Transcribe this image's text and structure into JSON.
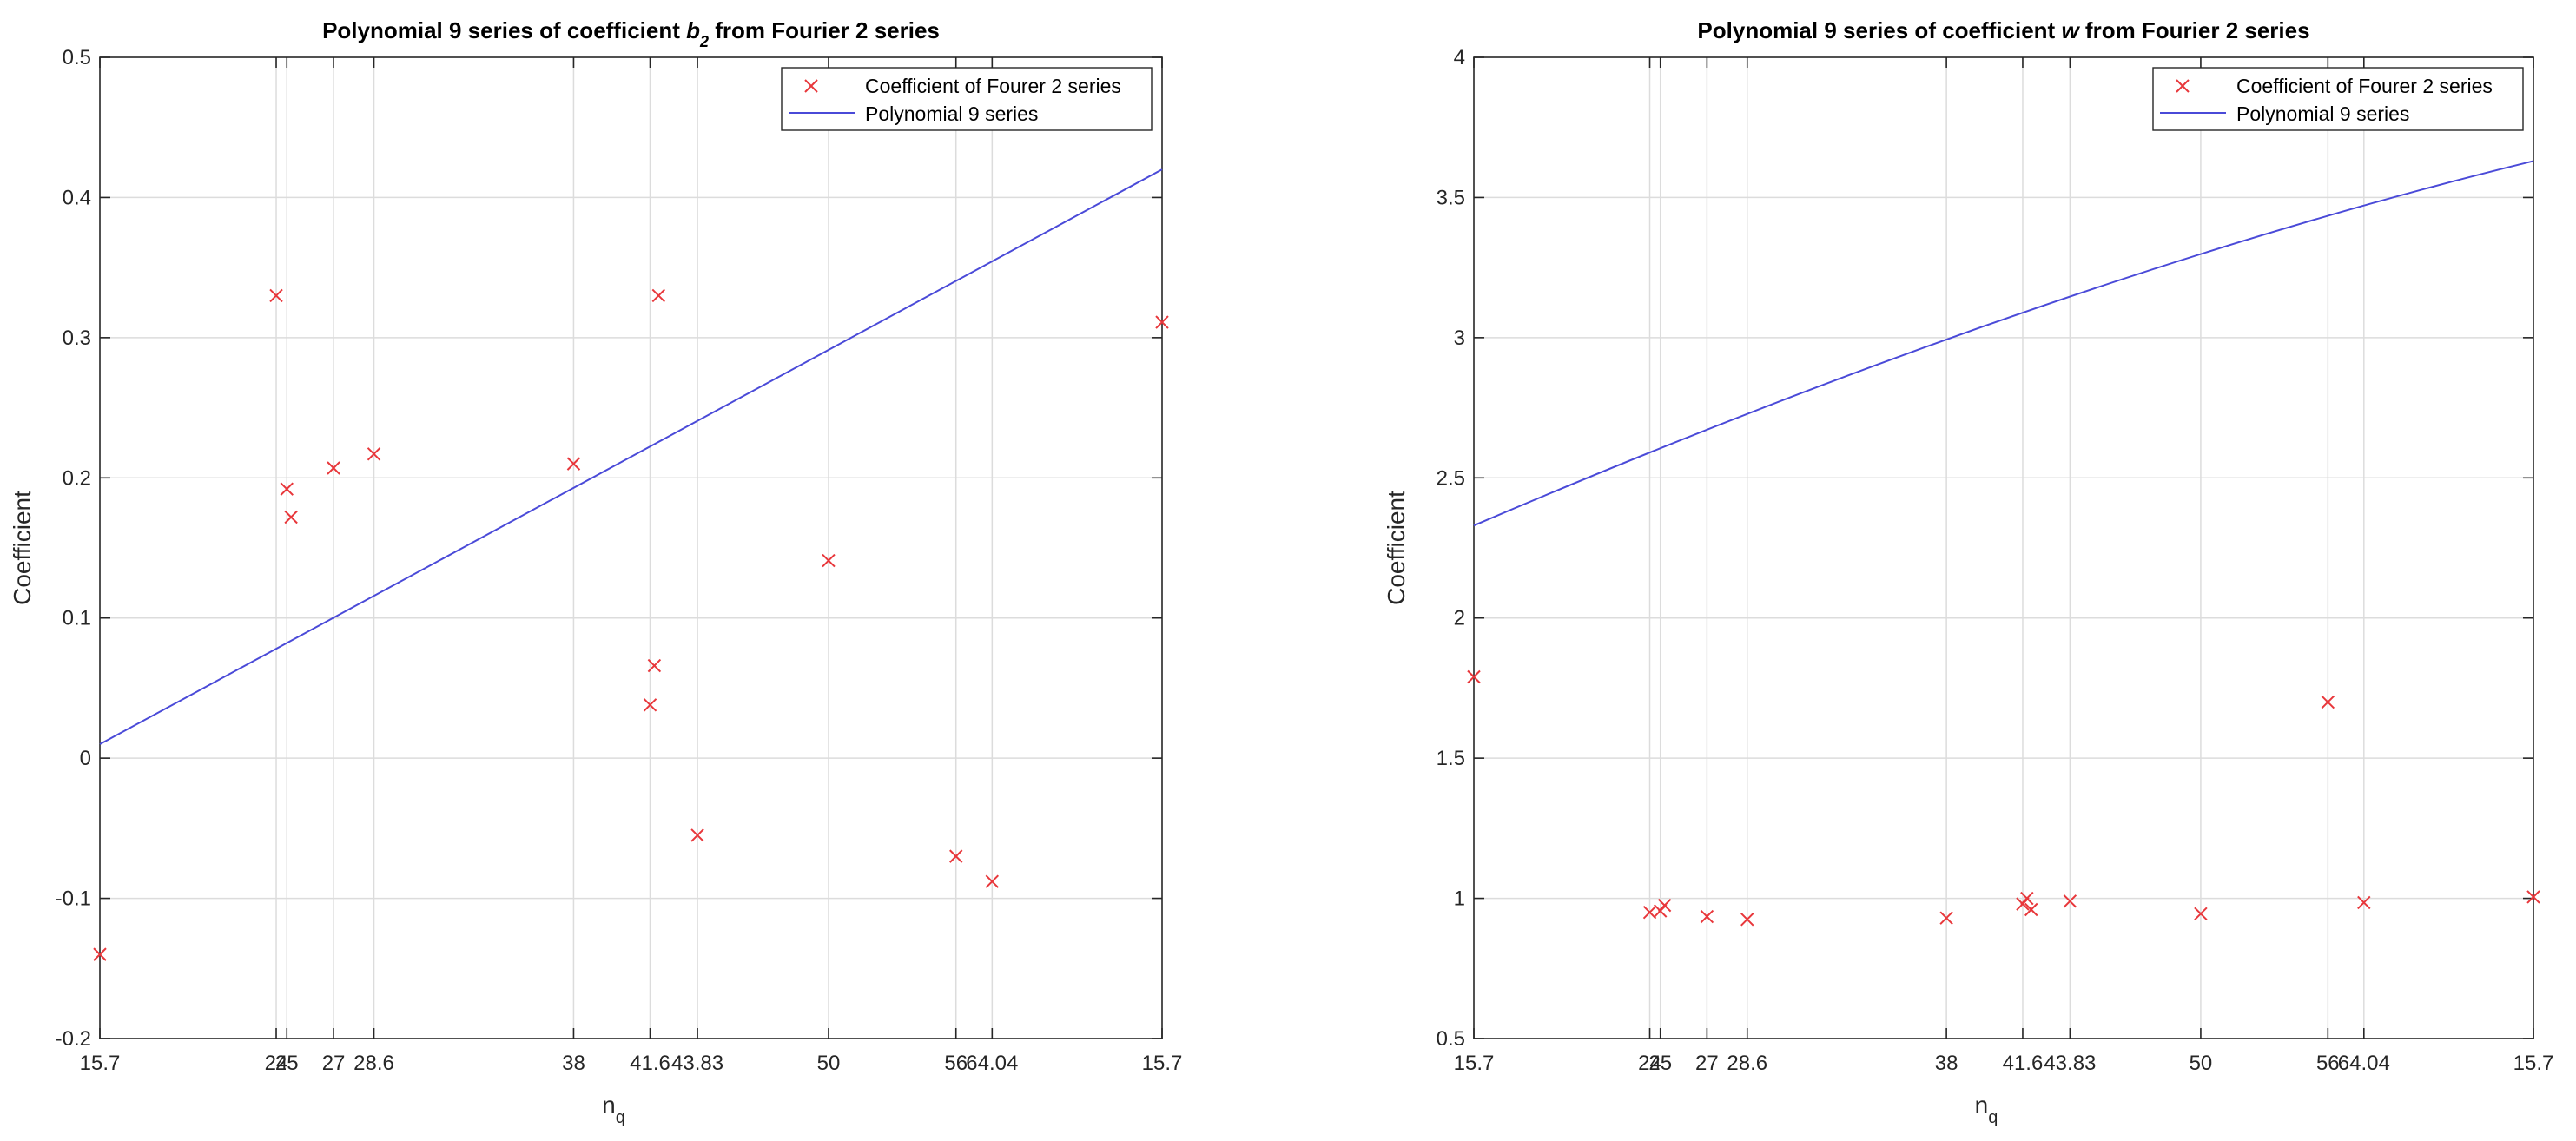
{
  "figure": {
    "colors": {
      "marker": "#e8373b",
      "fit_line": "#4a4ad8",
      "axes": "#262626",
      "grid": "#dcdcdc"
    }
  },
  "chart_data": [
    {
      "type": "scatter",
      "title": {
        "prefix": "Polynomial 9 series of coefficient ",
        "symbol": "b",
        "subscript": "2",
        "suffix": "  from Fourier 2 series"
      },
      "xlabel": {
        "base": "n",
        "subscript": "q"
      },
      "ylabel": "Coefficient",
      "x_ticks": [
        "15.7",
        "24",
        "25",
        "27",
        "28.6",
        "38",
        "41.6",
        "43.83",
        "50",
        "56",
        "64.04",
        "15.7"
      ],
      "ylim": [
        -0.2,
        0.5
      ],
      "y_ticks": [
        "-0.2",
        "-0.1",
        "0",
        "0.1",
        "0.2",
        "0.3",
        "0.4",
        "0.5"
      ],
      "grid": true,
      "legend_position": "top-right",
      "legend": [
        "Coefficient of Fourer 2 series",
        "Polynomial 9 series"
      ],
      "series": [
        {
          "name": "Coefficient of Fourer 2 series",
          "x": [
            15.7,
            24,
            24.5,
            24.7,
            26.7,
            28.6,
            38,
            41.6,
            41.8,
            42,
            43.83,
            50,
            56,
            57.7,
            65.7
          ],
          "y": [
            -0.14,
            0.33,
            0.192,
            0.172,
            0.207,
            0.217,
            0.21,
            0.038,
            0.066,
            0.33,
            -0.055,
            0.141,
            -0.07,
            -0.088,
            0.311
          ]
        },
        {
          "name": "Polynomial 9 series",
          "x": [
            15.7,
            65.7
          ],
          "y": [
            0.01,
            0.42
          ],
          "curvature": 0
        }
      ]
    },
    {
      "type": "scatter",
      "title": {
        "prefix": "Polynomial 9 series of coefficient ",
        "symbol": "w",
        "subscript": "",
        "suffix": "  from Fourier 2 series"
      },
      "xlabel": {
        "base": "n",
        "subscript": "q"
      },
      "ylabel": "Coefficient",
      "x_ticks": [
        "15.7",
        "24",
        "25",
        "27",
        "28.6",
        "38",
        "41.6",
        "43.83",
        "50",
        "56",
        "64.04",
        "15.7"
      ],
      "ylim": [
        0.5,
        4
      ],
      "y_ticks": [
        "0.5",
        "1",
        "1.5",
        "2",
        "2.5",
        "3",
        "3.5",
        "4"
      ],
      "grid": true,
      "legend_position": "top-right",
      "legend": [
        "Coefficient of Fourer 2 series",
        "Polynomial 9 series"
      ],
      "series": [
        {
          "name": "Coefficient of Fourer 2 series",
          "x": [
            15.7,
            24,
            24.5,
            24.7,
            26.7,
            28.6,
            38,
            41.6,
            41.8,
            42,
            43.83,
            50,
            56,
            57.7,
            65.7
          ],
          "y": [
            1.79,
            0.95,
            0.955,
            0.975,
            0.935,
            0.925,
            0.93,
            0.98,
            1,
            0.96,
            0.99,
            0.945,
            1.7,
            0.985,
            1.005
          ],
          "curvature": 0
        },
        {
          "name": "Polynomial 9 series",
          "x": [
            15.7,
            65.7
          ],
          "y": [
            2.33,
            3.63
          ],
          "curvature": 0.4
        }
      ]
    }
  ]
}
